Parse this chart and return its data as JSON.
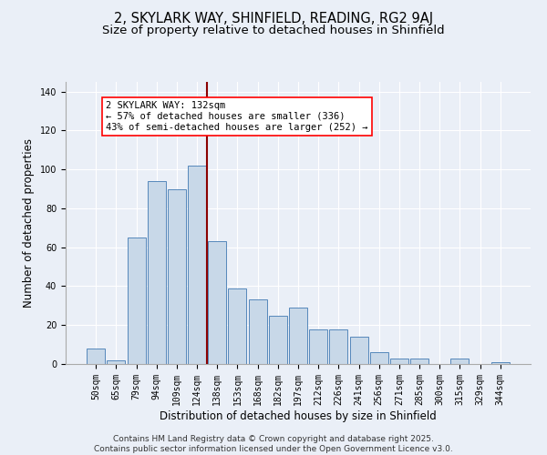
{
  "title1": "2, SKYLARK WAY, SHINFIELD, READING, RG2 9AJ",
  "title2": "Size of property relative to detached houses in Shinfield",
  "xlabel": "Distribution of detached houses by size in Shinfield",
  "ylabel": "Number of detached properties",
  "categories": [
    "50sqm",
    "65sqm",
    "79sqm",
    "94sqm",
    "109sqm",
    "124sqm",
    "138sqm",
    "153sqm",
    "168sqm",
    "182sqm",
    "197sqm",
    "212sqm",
    "226sqm",
    "241sqm",
    "256sqm",
    "271sqm",
    "285sqm",
    "300sqm",
    "315sqm",
    "329sqm",
    "344sqm"
  ],
  "values": [
    8,
    2,
    65,
    94,
    90,
    102,
    63,
    39,
    33,
    25,
    29,
    18,
    18,
    14,
    6,
    3,
    3,
    0,
    3,
    0,
    1
  ],
  "bar_color": "#c8d8e8",
  "bar_edge_color": "#5588bb",
  "vline_x": 5.5,
  "vline_color": "darkred",
  "annotation_box_text": "2 SKYLARK WAY: 132sqm\n← 57% of detached houses are smaller (336)\n43% of semi-detached houses are larger (252) →",
  "ylim": [
    0,
    145
  ],
  "yticks": [
    0,
    20,
    40,
    60,
    80,
    100,
    120,
    140
  ],
  "background_color": "#eaeff7",
  "footer1": "Contains HM Land Registry data © Crown copyright and database right 2025.",
  "footer2": "Contains public sector information licensed under the Open Government Licence v3.0.",
  "title_fontsize": 10.5,
  "subtitle_fontsize": 9.5,
  "xlabel_fontsize": 8.5,
  "ylabel_fontsize": 8.5,
  "tick_fontsize": 7,
  "annotation_fontsize": 7.5,
  "footer_fontsize": 6.5
}
